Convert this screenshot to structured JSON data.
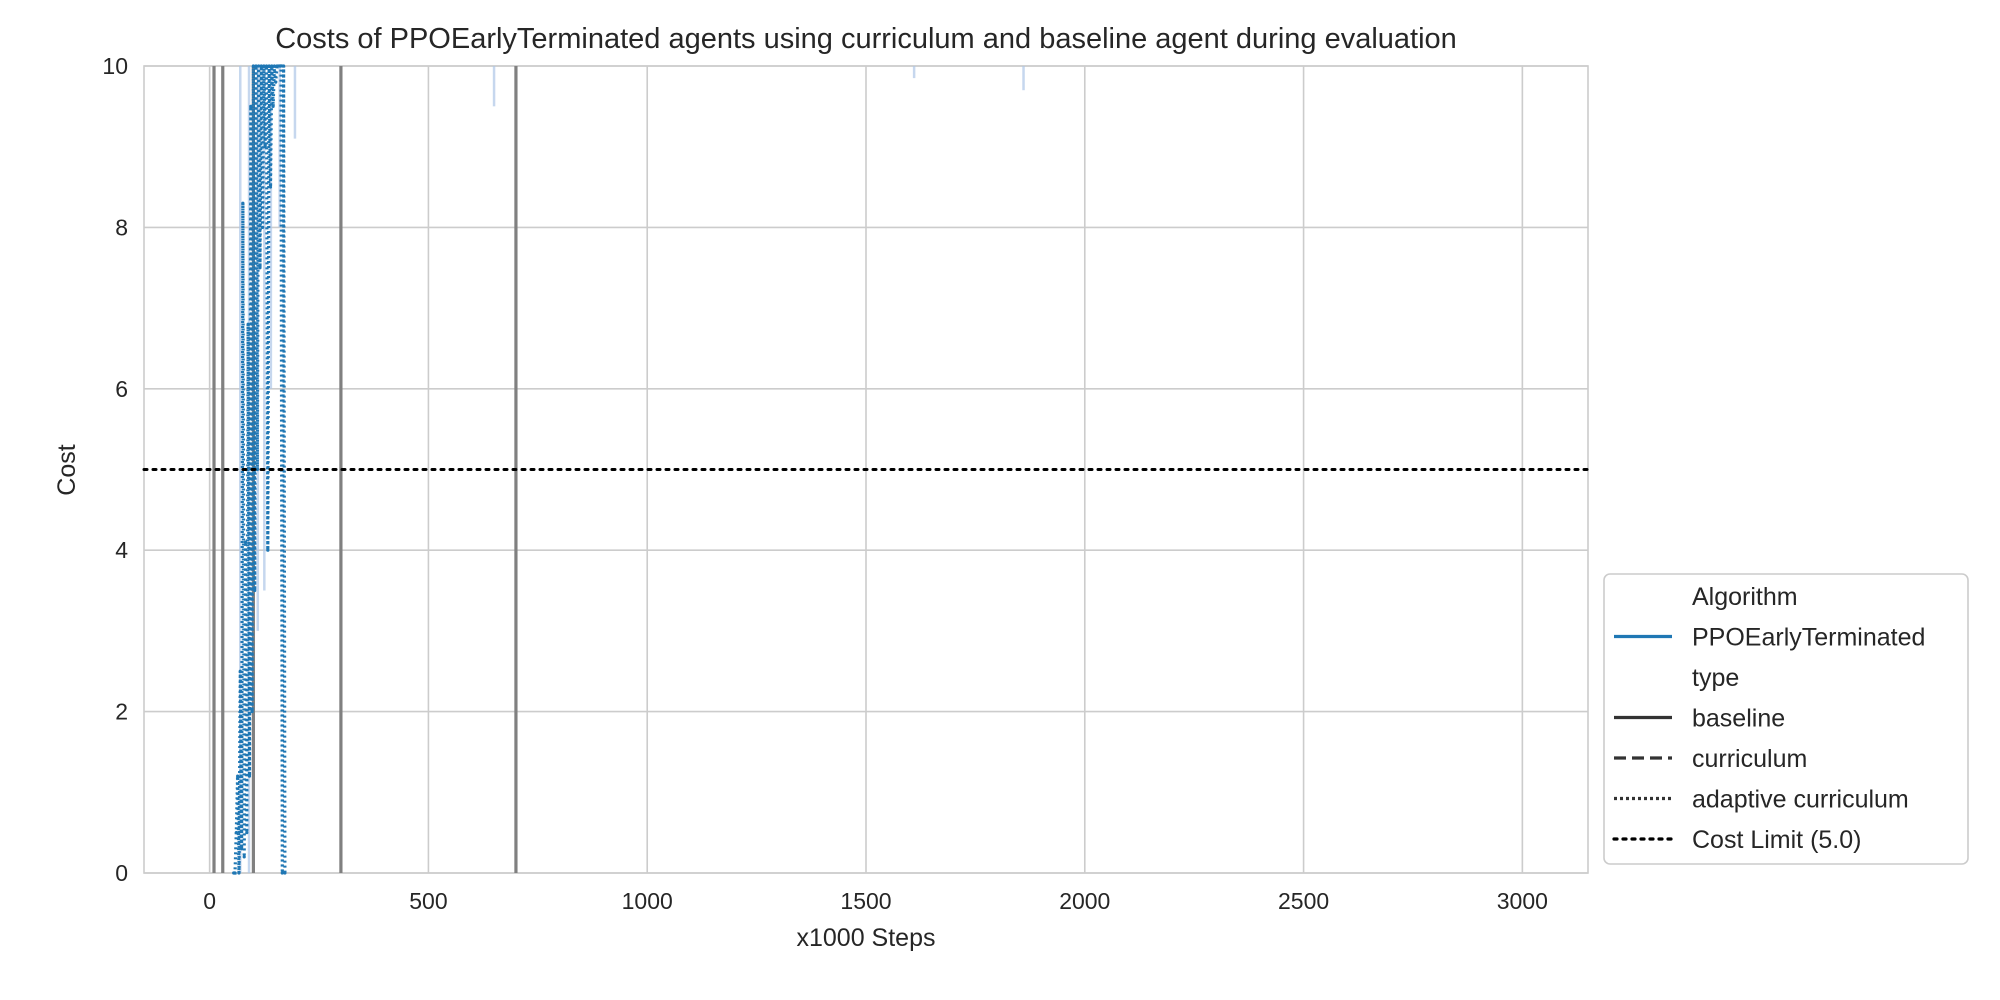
{
  "chart_data": {
    "type": "line",
    "title": "Costs of PPOEarlyTerminated agents using curriculum and baseline agent during evaluation",
    "xlabel": "x1000 Steps",
    "ylabel": "Cost",
    "xlim": [
      -150,
      3150
    ],
    "ylim": [
      0,
      10
    ],
    "xticks": [
      0,
      500,
      1000,
      1500,
      2000,
      2500,
      3000
    ],
    "yticks": [
      0,
      2,
      4,
      6,
      8,
      10
    ],
    "grid": true,
    "legend": {
      "placement": "right, outside",
      "entries": [
        {
          "label": "Algorithm",
          "kind": "header"
        },
        {
          "label": "PPOEarlyTerminated",
          "kind": "solid",
          "color": "#1f77b4"
        },
        {
          "label": "type",
          "kind": "header"
        },
        {
          "label": "baseline",
          "kind": "solid",
          "color": "#333333"
        },
        {
          "label": "curriculum",
          "kind": "dashed",
          "color": "#333333"
        },
        {
          "label": "adaptive curriculum",
          "kind": "dotted",
          "color": "#333333"
        },
        {
          "label": "Cost Limit (5.0)",
          "kind": "dotted-thick",
          "color": "#000000"
        }
      ]
    },
    "cost_limit": 5.0,
    "curriculum_boundaries": [
      10,
      30,
      100,
      300,
      700
    ],
    "series": [
      {
        "name": "PPOEarlyTerminated",
        "type": "adaptive curriculum",
        "color": "#1f77b4",
        "x": [
          55,
          58,
          61,
          64,
          67,
          70,
          73,
          76,
          79,
          82,
          85,
          88,
          91,
          94,
          97,
          100,
          103,
          106,
          109,
          112,
          115,
          118,
          121,
          124,
          127,
          130,
          133,
          136,
          139,
          142,
          145,
          148,
          151,
          154,
          157,
          160,
          163,
          166,
          169,
          172
        ],
        "y": [
          0,
          0,
          0.5,
          1.2,
          0,
          2.5,
          0.3,
          8.3,
          0.2,
          4.1,
          0.5,
          6.8,
          1.2,
          9.5,
          2.0,
          10,
          3.5,
          10,
          5.0,
          10,
          7.5,
          10,
          8.0,
          10,
          9.0,
          10,
          4.0,
          10,
          8.5,
          10,
          9.5,
          10,
          9.8,
          10,
          10,
          10,
          10,
          0,
          10,
          0
        ]
      },
      {
        "name": "PPOEarlyTerminated",
        "type": "adaptive curriculum (spread)",
        "color": "#aec7e8",
        "x": [
          70,
          90,
          110,
          125,
          140,
          160,
          195,
          650,
          1610,
          1860
        ],
        "y_low": [
          0,
          0,
          3.0,
          3.5,
          6.0,
          8.0,
          9.1,
          9.5,
          9.85,
          9.7
        ],
        "y_high": [
          10,
          10,
          10,
          10,
          10,
          10,
          10,
          10,
          10,
          10
        ]
      }
    ]
  }
}
